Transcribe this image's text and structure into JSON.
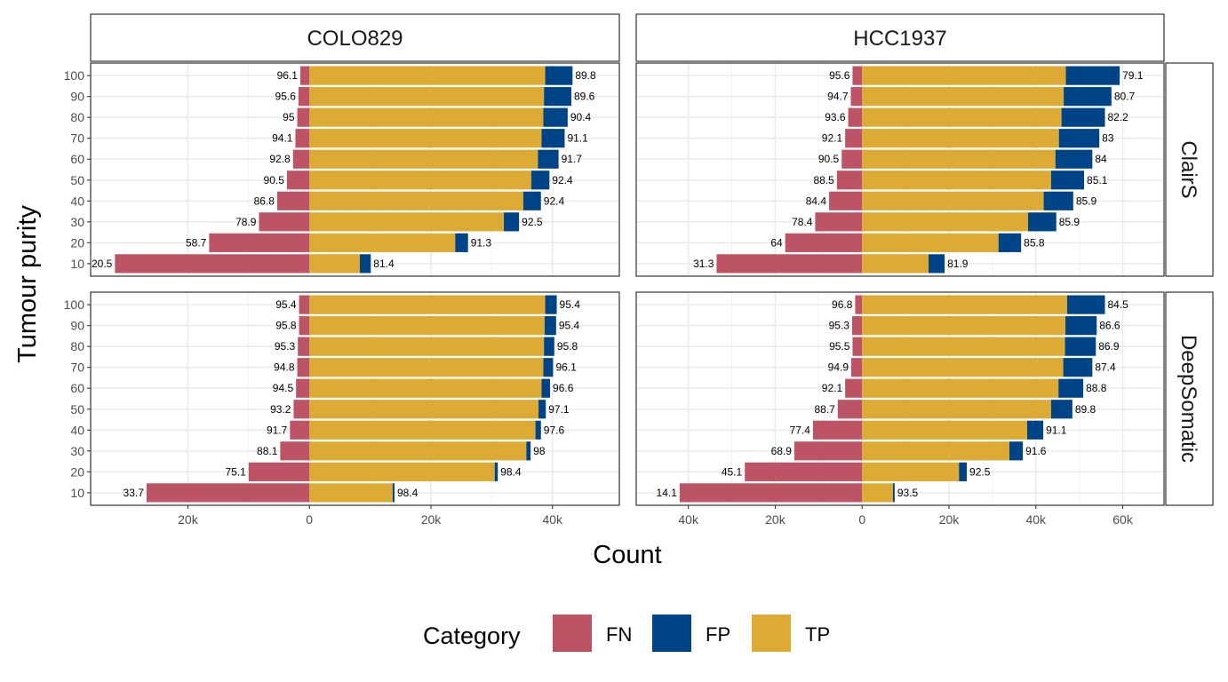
{
  "chart_data": {
    "type": "bar",
    "orientation": "horizontal-diverging-stacked",
    "xlabel": "Count",
    "ylabel": "Tumour purity",
    "categories": [
      "10",
      "20",
      "30",
      "40",
      "50",
      "60",
      "70",
      "80",
      "90",
      "100"
    ],
    "facet_columns": [
      "COLO829",
      "HCC1937"
    ],
    "facet_rows": [
      "ClairS",
      "DeepSomatic"
    ],
    "legend": {
      "title": "Category",
      "position": "bottom",
      "items": [
        {
          "name": "FN",
          "color": "#BC5466"
        },
        {
          "name": "FP",
          "color": "#004488"
        },
        {
          "name": "TP",
          "color": "#DDAA33"
        }
      ]
    },
    "grid": true,
    "panels": [
      {
        "column": "COLO829",
        "row": "ClairS",
        "xlim": [
          -36000,
          51000
        ],
        "x_ticks": [
          {
            "value": -20000,
            "label": "20k"
          },
          {
            "value": 0,
            "label": "0"
          },
          {
            "value": 20000,
            "label": "20k"
          },
          {
            "value": 40000,
            "label": "40k"
          }
        ],
        "FN": [
          32000,
          16500,
          8300,
          5300,
          3700,
          2700,
          2300,
          2000,
          1800,
          1500
        ],
        "TP": [
          8300,
          24000,
          32000,
          35200,
          36500,
          37600,
          38200,
          38500,
          38600,
          38800
        ],
        "FP": [
          1800,
          2100,
          2500,
          2900,
          3000,
          3400,
          3800,
          4000,
          4500,
          4500
        ],
        "recall_labels": [
          "20.5",
          "58.7",
          "78.9",
          "86.8",
          "90.5",
          "92.8",
          "94.1",
          "95",
          "95.6",
          "96.1"
        ],
        "precision_labels": [
          "81.4",
          "91.3",
          "92.5",
          "92.4",
          "92.4",
          "91.7",
          "91.1",
          "90.4",
          "89.6",
          "89.8"
        ]
      },
      {
        "column": "HCC1937",
        "row": "ClairS",
        "xlim": [
          -52000,
          69500
        ],
        "x_ticks": [
          {
            "value": -40000,
            "label": "40k"
          },
          {
            "value": -20000,
            "label": "20k"
          },
          {
            "value": 0,
            "label": "0"
          },
          {
            "value": 20000,
            "label": "20k"
          },
          {
            "value": 40000,
            "label": "40k"
          },
          {
            "value": 60000,
            "label": "60k"
          }
        ],
        "FN": [
          33500,
          17700,
          10800,
          7600,
          5800,
          4700,
          3900,
          3200,
          2600,
          2200
        ],
        "TP": [
          15300,
          31400,
          38200,
          41800,
          43500,
          44500,
          45300,
          45900,
          46400,
          46900
        ],
        "FP": [
          3700,
          5200,
          6500,
          6800,
          7600,
          8500,
          9300,
          10000,
          11000,
          12400
        ],
        "recall_labels": [
          "31.3",
          "64",
          "78.4",
          "84.4",
          "88.5",
          "90.5",
          "92.1",
          "93.6",
          "94.7",
          "95.6"
        ],
        "precision_labels": [
          "81.9",
          "85.8",
          "85.9",
          "85.9",
          "85.1",
          "84",
          "83",
          "82.2",
          "80.7",
          "79.1"
        ]
      },
      {
        "column": "COLO829",
        "row": "DeepSomatic",
        "xlim": [
          -36000,
          51000
        ],
        "x_ticks": [
          {
            "value": -20000,
            "label": "20k"
          },
          {
            "value": 0,
            "label": "0"
          },
          {
            "value": 20000,
            "label": "20k"
          },
          {
            "value": 40000,
            "label": "40k"
          }
        ],
        "FN": [
          26800,
          10000,
          4800,
          3200,
          2600,
          2200,
          2000,
          1900,
          1700,
          1700
        ],
        "TP": [
          13700,
          30500,
          35700,
          37200,
          37700,
          38200,
          38500,
          38600,
          38700,
          38800
        ],
        "FP": [
          300,
          500,
          700,
          900,
          1200,
          1400,
          1600,
          1700,
          1900,
          1900
        ],
        "recall_labels": [
          "33.7",
          "75.1",
          "88.1",
          "91.7",
          "93.2",
          "94.5",
          "94.8",
          "95.3",
          "95.8",
          "95.4"
        ],
        "precision_labels": [
          "98.4",
          "98.4",
          "98",
          "97.6",
          "97.1",
          "96.6",
          "96.1",
          "95.8",
          "95.4",
          "95.4"
        ]
      },
      {
        "column": "HCC1937",
        "row": "DeepSomatic",
        "xlim": [
          -52000,
          69500
        ],
        "x_ticks": [
          {
            "value": -40000,
            "label": "40k"
          },
          {
            "value": -20000,
            "label": "20k"
          },
          {
            "value": 0,
            "label": "0"
          },
          {
            "value": 20000,
            "label": "20k"
          },
          {
            "value": 40000,
            "label": "40k"
          },
          {
            "value": 60000,
            "label": "60k"
          }
        ],
        "FN": [
          42000,
          27000,
          15600,
          11300,
          5600,
          3900,
          2500,
          2200,
          2300,
          1600
        ],
        "TP": [
          7100,
          22300,
          33900,
          38000,
          43500,
          45200,
          46300,
          46700,
          46800,
          47200
        ],
        "FP": [
          400,
          1800,
          3100,
          3700,
          4900,
          5700,
          6700,
          7100,
          7200,
          8700
        ],
        "recall_labels": [
          "14.1",
          "45.1",
          "68.9",
          "77.4",
          "88.7",
          "92.1",
          "94.9",
          "95.5",
          "95.3",
          "96.8"
        ],
        "precision_labels": [
          "93.5",
          "92.5",
          "91.6",
          "91.1",
          "89.8",
          "88.8",
          "87.4",
          "86.9",
          "86.6",
          "84.5"
        ]
      }
    ]
  }
}
